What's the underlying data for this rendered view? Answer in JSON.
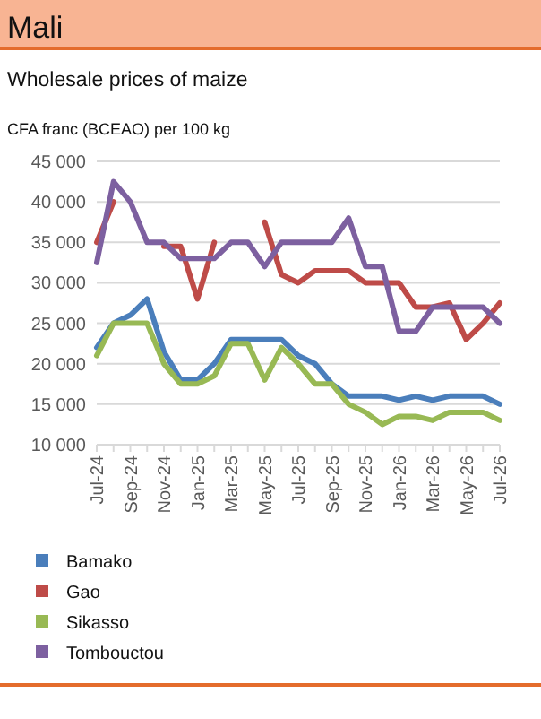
{
  "chart_data": {
    "type": "line",
    "title": "Mali",
    "subtitle": "Wholesale prices of maize",
    "ylabel": "CFA franc (BCEAO) per 100 kg",
    "categories": [
      "Jul-24",
      null,
      "Sep-24",
      null,
      "Nov-24",
      null,
      "Jan-25",
      null,
      "Mar-25",
      null,
      "May-25",
      null,
      "Jul-25",
      null,
      "Sep-25",
      null,
      "Nov-25",
      null,
      "Jan-26",
      null,
      "Mar-26",
      null,
      "May-26",
      null,
      "Jul-26"
    ],
    "ylim": [
      10000,
      45000
    ],
    "yticks": [
      {
        "value": 10000,
        "label": "10 000"
      },
      {
        "value": 15000,
        "label": "15 000"
      },
      {
        "value": 20000,
        "label": "20 000"
      },
      {
        "value": 25000,
        "label": "25 000"
      },
      {
        "value": 30000,
        "label": "30 000"
      },
      {
        "value": 35000,
        "label": "35 000"
      },
      {
        "value": 40000,
        "label": "40 000"
      },
      {
        "value": 45000,
        "label": "45 000"
      }
    ],
    "grid": "y",
    "legend": "bottom",
    "marker": "none",
    "line_style": "solid",
    "series": [
      {
        "name": "Bamako",
        "color": "#4a7ebb",
        "values": [
          22000,
          25000,
          26000,
          28000,
          21500,
          18000,
          18000,
          20000,
          23000,
          23000,
          23000,
          23000,
          21000,
          20000,
          17500,
          16000,
          16000,
          16000,
          15500,
          16000,
          15500,
          16000,
          16000,
          16000,
          15000
        ]
      },
      {
        "name": "Gao",
        "color": "#be4b48",
        "values": [
          35000,
          40000,
          null,
          null,
          34500,
          34500,
          28000,
          35000,
          null,
          null,
          37500,
          31000,
          30000,
          31500,
          31500,
          31500,
          30000,
          30000,
          30000,
          27000,
          27000,
          27500,
          23000,
          25000,
          27500
        ]
      },
      {
        "name": "Sikasso",
        "color": "#98b954",
        "values": [
          21000,
          25000,
          25000,
          25000,
          20000,
          17500,
          17500,
          18500,
          22500,
          22500,
          18000,
          22000,
          20000,
          17500,
          17500,
          15000,
          14000,
          12500,
          13500,
          13500,
          13000,
          14000,
          14000,
          14000,
          13000
        ]
      },
      {
        "name": "Tombouctou",
        "color": "#7d60a0",
        "values": [
          32500,
          42500,
          40000,
          35000,
          35000,
          33000,
          33000,
          33000,
          35000,
          35000,
          32000,
          35000,
          35000,
          35000,
          35000,
          38000,
          32000,
          32000,
          24000,
          24000,
          27000,
          27000,
          27000,
          27000,
          25000
        ]
      }
    ]
  }
}
